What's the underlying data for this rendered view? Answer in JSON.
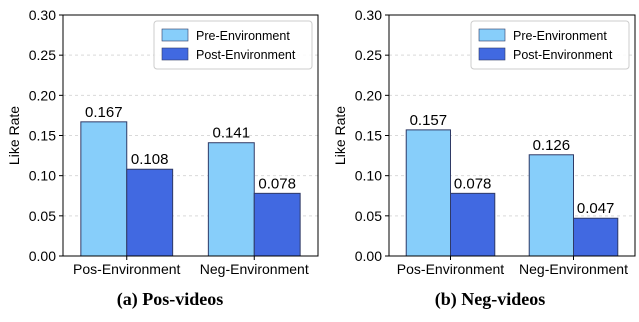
{
  "chart_data": [
    {
      "type": "bar",
      "caption": "(a) Pos-videos",
      "ylabel": "Like Rate",
      "xlabel": "",
      "ylim": [
        0,
        0.3
      ],
      "yticks": [
        "0.00",
        "0.05",
        "0.10",
        "0.15",
        "0.20",
        "0.25",
        "0.30"
      ],
      "grid": true,
      "legend_position": "top-right",
      "categories": [
        "Pos-Environment",
        "Neg-Environment"
      ],
      "series": [
        {
          "name": "Pre-Environment",
          "color": "#87CEFA",
          "values": [
            0.167,
            0.141
          ],
          "labels": [
            "0.167",
            "0.141"
          ]
        },
        {
          "name": "Post-Environment",
          "color": "#4169E1",
          "values": [
            0.108,
            0.078
          ],
          "labels": [
            "0.108",
            "0.078"
          ]
        }
      ]
    },
    {
      "type": "bar",
      "caption": "(b) Neg-videos",
      "ylabel": "Like Rate",
      "xlabel": "",
      "ylim": [
        0,
        0.3
      ],
      "yticks": [
        "0.00",
        "0.05",
        "0.10",
        "0.15",
        "0.20",
        "0.25",
        "0.30"
      ],
      "grid": true,
      "legend_position": "top-right",
      "categories": [
        "Pos-Environment",
        "Neg-Environment"
      ],
      "series": [
        {
          "name": "Pre-Environment",
          "color": "#87CEFA",
          "values": [
            0.157,
            0.126
          ],
          "labels": [
            "0.157",
            "0.126"
          ]
        },
        {
          "name": "Post-Environment",
          "color": "#4169E1",
          "values": [
            0.078,
            0.047
          ],
          "labels": [
            "0.078",
            "0.047"
          ]
        }
      ]
    }
  ]
}
